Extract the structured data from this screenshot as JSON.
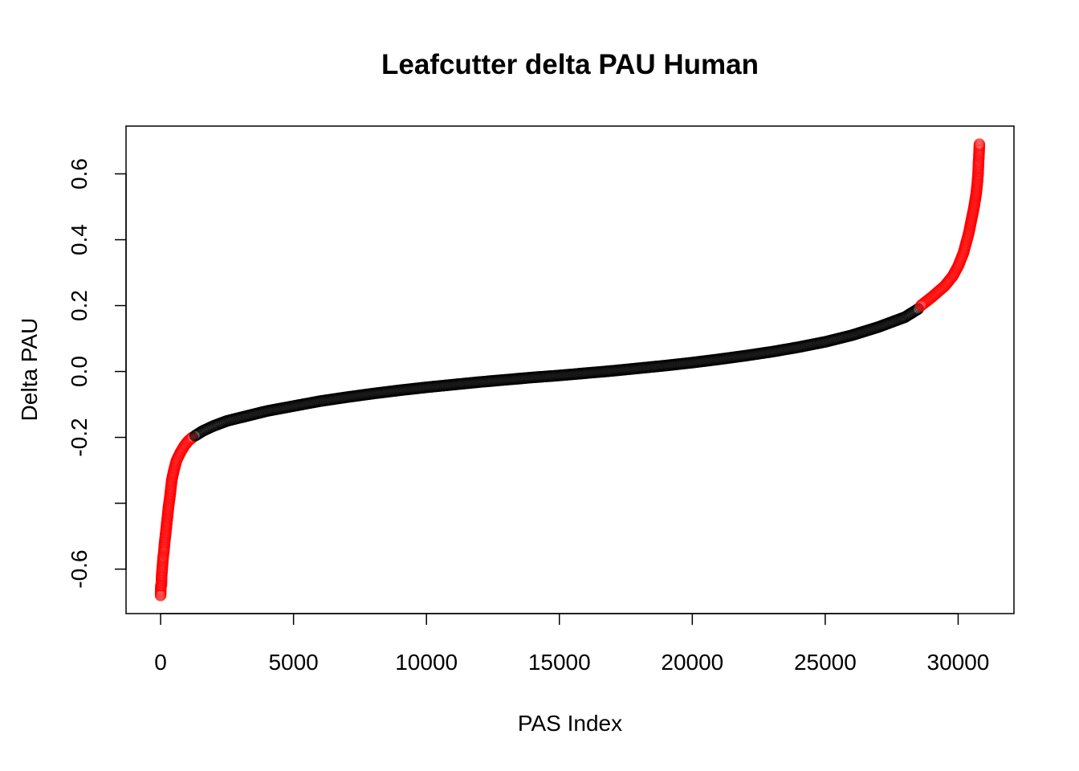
{
  "chart_data": {
    "type": "scatter",
    "title": "Leafcutter delta PAU Human",
    "xlabel": "PAS Index",
    "ylabel": "Delta PAU",
    "xlim": [
      -1300,
      32100
    ],
    "ylim": [
      -0.735,
      0.745
    ],
    "x_ticks": [
      0,
      5000,
      10000,
      15000,
      20000,
      25000,
      30000
    ],
    "x_tick_labels": [
      "0",
      "5000",
      "10000",
      "15000",
      "20000",
      "25000",
      "30000"
    ],
    "y_ticks": [
      -0.6,
      -0.4,
      -0.2,
      0.0,
      0.2,
      0.4,
      0.6
    ],
    "y_tick_labels": [
      "-0.6",
      "",
      "-0.2",
      "0.0",
      "0.2",
      "0.4",
      "0.6"
    ],
    "grid": false,
    "legend": "none",
    "n_points": 30800,
    "threshold": 0.2,
    "colors": {
      "significant": "#ff0000",
      "not_significant": "#000000"
    },
    "series": [
      {
        "color": "#ff0000",
        "points": [
          [
            0,
            -0.68
          ],
          [
            10,
            -0.65
          ],
          [
            30,
            -0.65
          ],
          [
            40,
            -0.62
          ],
          [
            60,
            -0.6
          ],
          [
            80,
            -0.58
          ],
          [
            100,
            -0.56
          ],
          [
            120,
            -0.55
          ],
          [
            150,
            -0.52
          ],
          [
            180,
            -0.5
          ],
          [
            220,
            -0.47
          ],
          [
            260,
            -0.44
          ],
          [
            300,
            -0.41
          ],
          [
            350,
            -0.38
          ],
          [
            420,
            -0.33
          ],
          [
            500,
            -0.3
          ],
          [
            600,
            -0.27
          ],
          [
            750,
            -0.245
          ],
          [
            900,
            -0.225
          ],
          [
            1050,
            -0.21
          ],
          [
            1200,
            -0.2
          ]
        ]
      },
      {
        "color": "#000000",
        "points": [
          [
            1300,
            -0.195
          ],
          [
            1600,
            -0.18
          ],
          [
            2000,
            -0.165
          ],
          [
            2500,
            -0.15
          ],
          [
            3000,
            -0.14
          ],
          [
            4000,
            -0.12
          ],
          [
            5000,
            -0.105
          ],
          [
            6000,
            -0.09
          ],
          [
            7000,
            -0.078
          ],
          [
            8000,
            -0.067
          ],
          [
            9000,
            -0.057
          ],
          [
            10000,
            -0.048
          ],
          [
            11000,
            -0.04
          ],
          [
            12000,
            -0.032
          ],
          [
            13000,
            -0.025
          ],
          [
            14000,
            -0.018
          ],
          [
            15000,
            -0.012
          ],
          [
            16000,
            -0.005
          ],
          [
            17000,
            0.002
          ],
          [
            18000,
            0.01
          ],
          [
            19000,
            0.018
          ],
          [
            20000,
            0.027
          ],
          [
            21000,
            0.037
          ],
          [
            22000,
            0.048
          ],
          [
            23000,
            0.06
          ],
          [
            24000,
            0.074
          ],
          [
            25000,
            0.09
          ],
          [
            26000,
            0.11
          ],
          [
            27000,
            0.135
          ],
          [
            28000,
            0.165
          ],
          [
            28500,
            0.19
          ]
        ]
      },
      {
        "color": "#ff0000",
        "points": [
          [
            28600,
            0.2
          ],
          [
            29000,
            0.225
          ],
          [
            29500,
            0.26
          ],
          [
            29800,
            0.29
          ],
          [
            30000,
            0.32
          ],
          [
            30200,
            0.36
          ],
          [
            30400,
            0.42
          ],
          [
            30500,
            0.46
          ],
          [
            30600,
            0.5
          ],
          [
            30680,
            0.54
          ],
          [
            30720,
            0.57
          ],
          [
            30750,
            0.6
          ],
          [
            30760,
            0.62
          ],
          [
            30770,
            0.64
          ],
          [
            30780,
            0.65
          ],
          [
            30800,
            0.69
          ]
        ]
      }
    ]
  }
}
